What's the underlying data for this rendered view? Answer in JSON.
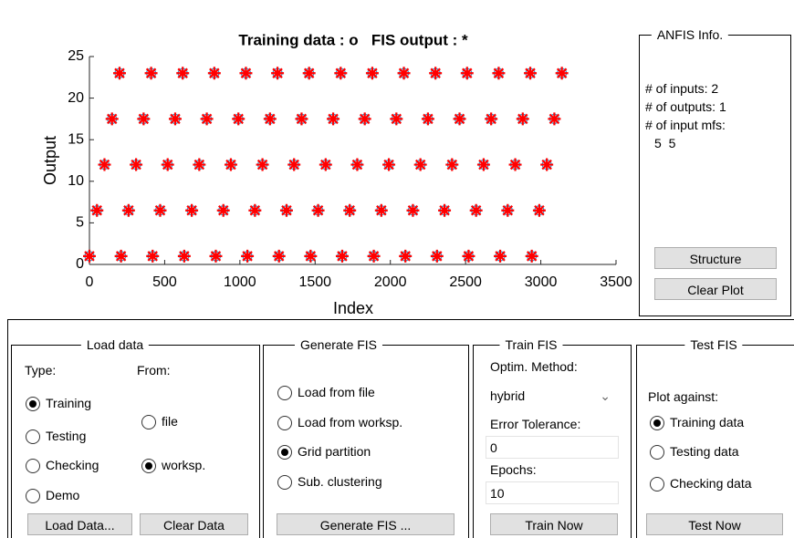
{
  "chart_data": {
    "type": "scatter",
    "title": "Training data : o   FIS output : *",
    "xlabel": "Index",
    "ylabel": "Output",
    "x": [
      0,
      50,
      100,
      150,
      200,
      210,
      260,
      310,
      360,
      410,
      420,
      470,
      520,
      570,
      620,
      630,
      680,
      730,
      780,
      830,
      840,
      890,
      940,
      990,
      1040,
      1050,
      1100,
      1150,
      1200,
      1250,
      1260,
      1310,
      1360,
      1410,
      1460,
      1470,
      1520,
      1570,
      1620,
      1670,
      1680,
      1730,
      1780,
      1830,
      1880,
      1890,
      1940,
      1990,
      2040,
      2090,
      2100,
      2150,
      2200,
      2250,
      2300,
      2310,
      2360,
      2410,
      2460,
      2510,
      2520,
      2570,
      2620,
      2670,
      2720,
      2730,
      2780,
      2830,
      2880,
      2930,
      2940,
      2990,
      3040,
      3090,
      3140
    ],
    "series": [
      {
        "marker": "circle",
        "color": "#2a9fd8",
        "values": [
          1,
          6.5,
          12,
          17.5,
          23,
          1,
          6.5,
          12,
          17.5,
          23,
          1,
          6.5,
          12,
          17.5,
          23,
          1,
          6.5,
          12,
          17.5,
          23,
          1,
          6.5,
          12,
          17.5,
          23,
          1,
          6.5,
          12,
          17.5,
          23,
          1,
          6.5,
          12,
          17.5,
          23,
          1,
          6.5,
          12,
          17.5,
          23,
          1,
          6.5,
          12,
          17.5,
          23,
          1,
          6.5,
          12,
          17.5,
          23,
          1,
          6.5,
          12,
          17.5,
          23,
          1,
          6.5,
          12,
          17.5,
          23,
          1,
          6.5,
          12,
          17.5,
          23,
          1,
          6.5,
          12,
          17.5,
          23,
          1,
          6.5,
          12,
          17.5,
          23
        ]
      },
      {
        "marker": "asterisk",
        "color": "#ff0000",
        "values": [
          1,
          6.5,
          12,
          17.5,
          23,
          1,
          6.5,
          12,
          17.5,
          23,
          1,
          6.5,
          12,
          17.5,
          23,
          1,
          6.5,
          12,
          17.5,
          23,
          1,
          6.5,
          12,
          17.5,
          23,
          1,
          6.5,
          12,
          17.5,
          23,
          1,
          6.5,
          12,
          17.5,
          23,
          1,
          6.5,
          12,
          17.5,
          23,
          1,
          6.5,
          12,
          17.5,
          23,
          1,
          6.5,
          12,
          17.5,
          23,
          1,
          6.5,
          12,
          17.5,
          23,
          1,
          6.5,
          12,
          17.5,
          23,
          1,
          6.5,
          12,
          17.5,
          23,
          1,
          6.5,
          12,
          17.5,
          23,
          1,
          6.5,
          12,
          17.5,
          23
        ]
      }
    ],
    "xlim": [
      0,
      3500
    ],
    "xticks": [
      0,
      500,
      1000,
      1500,
      2000,
      2500,
      3000,
      3500
    ],
    "ylim": [
      0,
      25
    ],
    "yticks": [
      0,
      5,
      10,
      15,
      20,
      25
    ]
  },
  "anfis_info": {
    "title": "ANFIS Info.",
    "lines": [
      "# of inputs: 2",
      "# of outputs: 1",
      "# of input mfs:",
      "5  5"
    ],
    "buttons": [
      "Structure",
      "Clear Plot"
    ]
  },
  "load_data": {
    "title": "Load data",
    "type_label": "Type:",
    "from_label": "From:",
    "type_options": [
      "Training",
      "Testing",
      "Checking",
      "Demo"
    ],
    "type_selected": 0,
    "from_options": [
      "file",
      "worksp."
    ],
    "from_selected": 1,
    "buttons": [
      "Load Data...",
      "Clear Data"
    ]
  },
  "generate_fis": {
    "title": "Generate FIS",
    "options": [
      "Load from file",
      "Load from worksp.",
      "Grid partition",
      "Sub. clustering"
    ],
    "selected": 2,
    "button": "Generate FIS ..."
  },
  "train_fis": {
    "title": "Train FIS",
    "method_label": "Optim. Method:",
    "method": "hybrid",
    "tolerance_label": "Error Tolerance:",
    "tolerance": "0",
    "epochs_label": "Epochs:",
    "epochs": "10",
    "button": "Train Now"
  },
  "test_fis": {
    "title": "Test FIS",
    "plot_label": "Plot against:",
    "options": [
      "Training data",
      "Testing data",
      "Checking data"
    ],
    "selected": 0,
    "button": "Test Now"
  }
}
